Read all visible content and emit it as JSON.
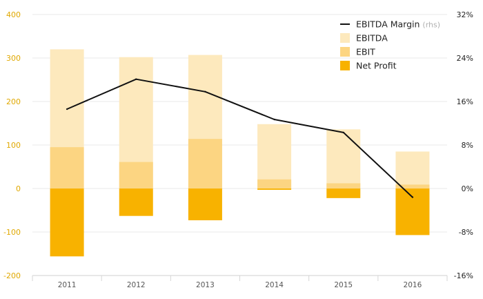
{
  "chart_data": {
    "type": "bar",
    "categories": [
      "2011",
      "2012",
      "2013",
      "2014",
      "2015",
      "2016"
    ],
    "series": [
      {
        "name": "EBITDA",
        "type": "bar",
        "axis": "left",
        "color": "#fde9bd",
        "values": [
          320,
          302,
          307,
          148,
          136,
          85
        ]
      },
      {
        "name": "EBIT",
        "type": "bar",
        "axis": "left",
        "color": "#fcd582",
        "values": [
          95,
          61,
          114,
          21,
          12,
          9
        ]
      },
      {
        "name": "Net Profit",
        "type": "bar",
        "axis": "left",
        "color": "#f8b200",
        "values": [
          -156,
          -63,
          -73,
          -3,
          -22,
          -107
        ]
      },
      {
        "name": "EBITDA Margin",
        "type": "line",
        "axis": "right",
        "color": "#111111",
        "values": [
          14.6,
          20.1,
          17.8,
          12.7,
          10.3,
          -1.6
        ]
      }
    ],
    "y_left": {
      "min": -200,
      "max": 400,
      "ticks": [
        "400",
        "300",
        "200",
        "100",
        "0",
        "-100",
        "-200"
      ],
      "tick_values": [
        400,
        300,
        200,
        100,
        0,
        -100,
        -200
      ],
      "color": "#e0a800"
    },
    "y_right": {
      "min": -16,
      "max": 32,
      "ticks": [
        "32%",
        "24%",
        "16%",
        "8%",
        "0%",
        "-8%",
        "-16%"
      ],
      "tick_values": [
        32,
        24,
        16,
        8,
        0,
        -8,
        -16
      ]
    },
    "legend": {
      "position": "top-right",
      "items": [
        {
          "label": "EBITDA Margin",
          "note": "(rhs)",
          "marker": "line",
          "color": "#111111"
        },
        {
          "label": "EBITDA",
          "marker": "square",
          "color": "#fde9bd"
        },
        {
          "label": "EBIT",
          "marker": "square",
          "color": "#fcd582"
        },
        {
          "label": "Net Profit",
          "marker": "square",
          "color": "#f8b200"
        }
      ]
    },
    "grid": true,
    "title": "",
    "xlabel": "",
    "ylabel": ""
  }
}
